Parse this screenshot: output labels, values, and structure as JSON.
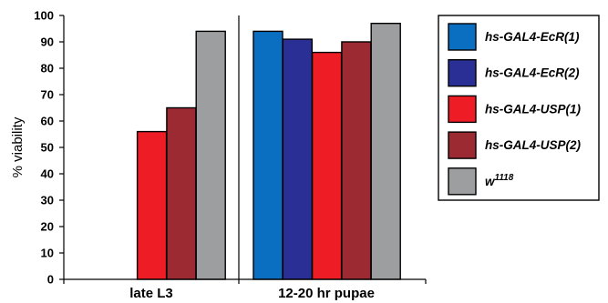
{
  "chart_data": {
    "type": "bar",
    "ylabel": "% viability",
    "xlabel": "",
    "ylim": [
      0,
      100
    ],
    "yticks": [
      0,
      10,
      20,
      30,
      40,
      50,
      60,
      70,
      80,
      90,
      100
    ],
    "grid": false,
    "legend_position": "right",
    "categories": [
      "late L3",
      "12-20 hr pupae"
    ],
    "series": [
      {
        "name": "hs-GAL4-EcR(1)",
        "name_sup": "",
        "color": "#0a6fc0",
        "values": [
          0,
          94
        ]
      },
      {
        "name": "hs-GAL4-EcR(2)",
        "name_sup": "",
        "color": "#2a2f96",
        "values": [
          0,
          91
        ]
      },
      {
        "name": "hs-GAL4-USP(1)",
        "name_sup": "",
        "color": "#ee1c25",
        "values": [
          56,
          86
        ]
      },
      {
        "name": "hs-GAL4-USP(2)",
        "name_sup": "",
        "color": "#9b2a33",
        "values": [
          65,
          90
        ]
      },
      {
        "name": "w",
        "name_sup": "1118",
        "color": "#9c9ea0",
        "values": [
          94,
          97
        ]
      }
    ]
  }
}
